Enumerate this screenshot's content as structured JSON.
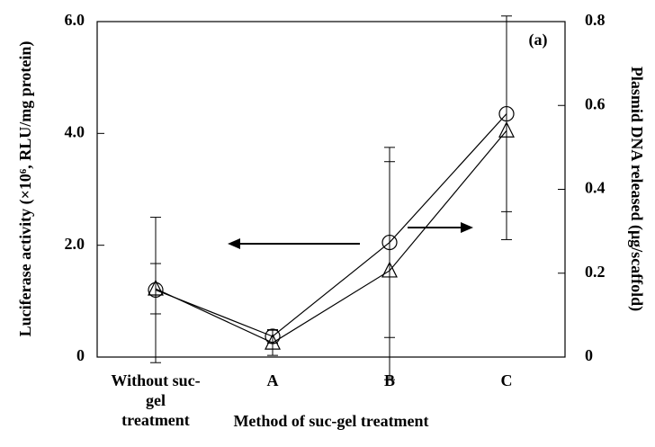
{
  "chart_data": {
    "type": "line",
    "annotation": "(a)",
    "xlabel": "Method of suc-gel treatment",
    "ylabel": "Luciferase activity (×10⁶, RLU/mg protein)",
    "y2label": "Plasmid DNA released (μg/scaffold)",
    "categories": [
      "Without suc-gel treatment",
      "A",
      "B",
      "C"
    ],
    "ylim": [
      0,
      6
    ],
    "yticks": [
      0,
      {
        "value": 2,
        "label": "2.0"
      },
      {
        "value": 4,
        "label": "4.0"
      },
      {
        "value": 6,
        "label": "6.0"
      }
    ],
    "y2lim": [
      0,
      0.8
    ],
    "y2ticks": [
      0,
      0.2,
      0.4,
      0.6,
      0.8
    ],
    "series": [
      {
        "marker": "circle",
        "color": "#000000",
        "values": [
          1.2,
          0.37,
          2.05,
          4.35
        ],
        "errors": [
          1.3,
          0.12,
          1.7,
          1.75
        ]
      },
      {
        "marker": "triangle",
        "color": "#000000",
        "axis": "y2",
        "values": [
          0.163,
          0.034,
          0.206,
          0.54
        ],
        "errors": [
          0.06,
          0.03,
          0.26,
          0.26
        ]
      }
    ]
  }
}
